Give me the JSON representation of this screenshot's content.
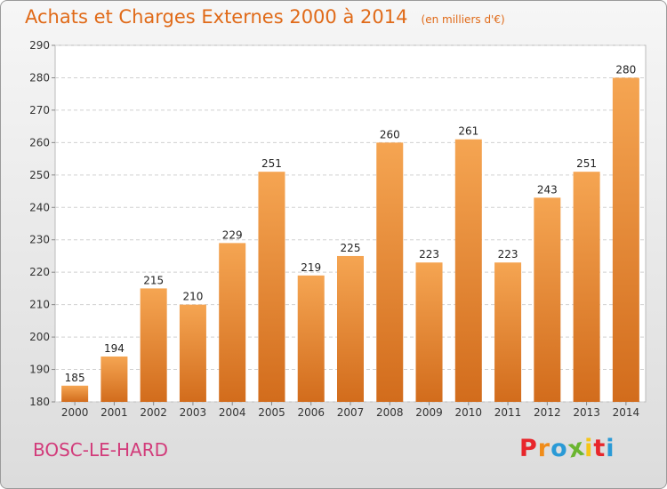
{
  "header": {
    "title": "Achats et Charges Externes 2000 à 2014",
    "subtitle": "(en milliers d'€)"
  },
  "footer": {
    "commune": "BOSC-LE-HARD",
    "logo_letters": [
      "P",
      "r",
      "o",
      "x",
      "i",
      "t",
      "i"
    ],
    "logo_colors": [
      "#e8262b",
      "#f08c1a",
      "#2a9ad6",
      "#6ab530",
      "#f5c518",
      "#e8262b",
      "#2a9ad6"
    ]
  },
  "chart_data": {
    "type": "bar",
    "categories": [
      "2000",
      "2001",
      "2002",
      "2003",
      "2004",
      "2005",
      "2006",
      "2007",
      "2008",
      "2009",
      "2010",
      "2011",
      "2012",
      "2013",
      "2014"
    ],
    "values": [
      185,
      194,
      215,
      210,
      229,
      251,
      219,
      225,
      260,
      223,
      261,
      223,
      243,
      251,
      280
    ],
    "ylim": [
      180,
      290
    ],
    "yticks": [
      180,
      190,
      200,
      210,
      220,
      230,
      240,
      250,
      260,
      270,
      280,
      290
    ],
    "grid": true,
    "bar_color_top": "#f5a552",
    "bar_color_bottom": "#d26c1c"
  }
}
